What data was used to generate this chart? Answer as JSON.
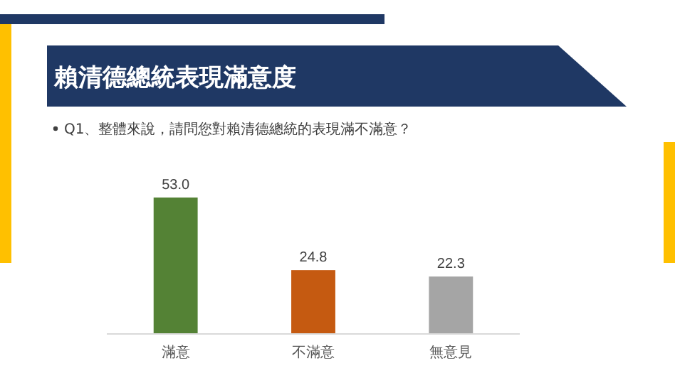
{
  "chart_data": {
    "type": "bar",
    "title": "賴清德總統表現滿意度",
    "subtitle": "Q1、整體來說，請問您對賴清德總統的表現滿不滿意？",
    "categories": [
      "滿意",
      "不滿意",
      "無意見"
    ],
    "values": [
      53.0,
      24.8,
      22.3
    ],
    "colors": [
      "#548235",
      "#c55a11",
      "#a5a5a5"
    ],
    "value_labels": [
      "53.0",
      "24.8",
      "22.3"
    ]
  }
}
